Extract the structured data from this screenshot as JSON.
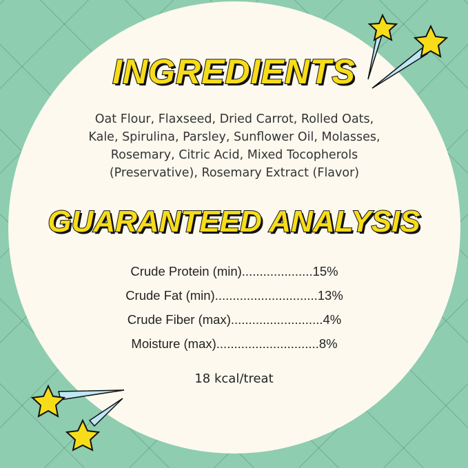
{
  "ingredients": {
    "title": "INGREDIENTS",
    "lines": [
      "Oat Flour, Flaxseed, Dried Carrot, Rolled Oats,",
      "Kale, Spirulina, Parsley, Sunflower Oil, Molasses,",
      "Rosemary, Citric Acid, Mixed Tocopherols",
      "(Preservative), Rosemary Extract (Flavor)"
    ]
  },
  "analysis": {
    "title": "GUARANTEED ANALYSIS",
    "rows": [
      "Crude Protein (min)....................15%",
      "Crude Fat (min).............................13%",
      "Crude Fiber (max)..........................4%",
      "Moisture (max).............................8%"
    ],
    "calories": "18 kcal/treat"
  },
  "colors": {
    "background": "#8ecdaf",
    "circle": "#fdf9ef",
    "title_yellow": "#f7dc1a",
    "star_trail": "#bfe6f5"
  }
}
